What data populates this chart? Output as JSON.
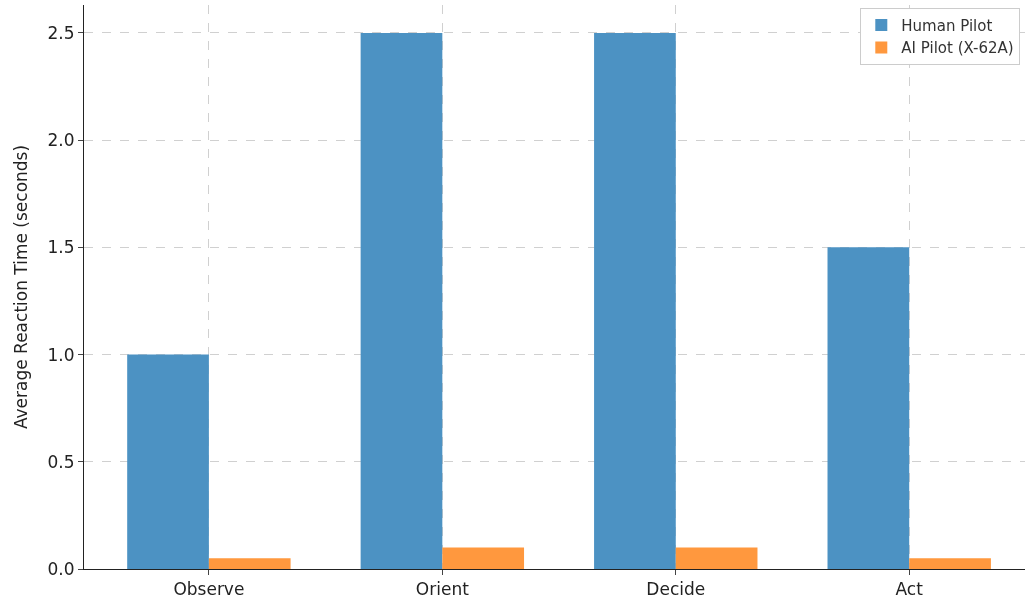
{
  "chart_data": {
    "type": "bar",
    "ylabel": "Average Reaction Time (seconds)",
    "categories": [
      "Observe",
      "Orient",
      "Decide",
      "Act"
    ],
    "series": [
      {
        "name": "Human Pilot",
        "color": "#4c92c3",
        "values": [
          1.0,
          2.5,
          2.5,
          1.5
        ]
      },
      {
        "name": "AI Pilot (X-62A)",
        "color": "#ff983e",
        "values": [
          0.05,
          0.1,
          0.1,
          0.05
        ]
      }
    ],
    "ylim": [
      0,
      2.63
    ],
    "yticks": [
      {
        "value": 0,
        "label": "0.0"
      },
      0.5,
      {
        "value": 1,
        "label": "1.0"
      },
      1.5,
      {
        "value": 2,
        "label": "2.0"
      },
      2.5
    ],
    "grid": true,
    "legend": "top right"
  }
}
